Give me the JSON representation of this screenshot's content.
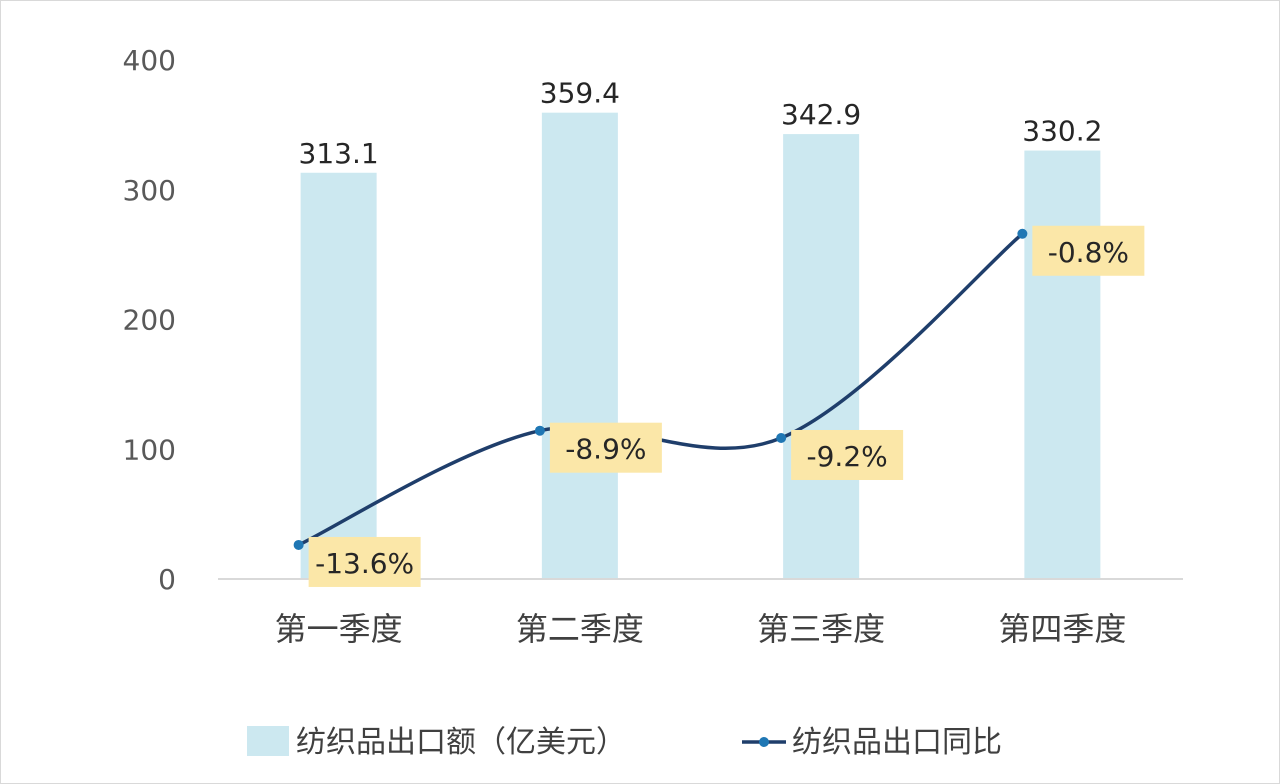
{
  "chart_data": {
    "type": "bar",
    "categories": [
      "第一季度",
      "第二季度",
      "第三季度",
      "第四季度"
    ],
    "ylim": [
      0,
      400
    ],
    "yticks": [
      0,
      100,
      200,
      300,
      400
    ],
    "series": [
      {
        "name": "纺织品出口额（亿美元）",
        "type": "bar",
        "values": [
          313.1,
          359.4,
          342.9,
          330.2
        ],
        "labels": [
          "313.1",
          "359.4",
          "342.9",
          "330.2"
        ],
        "color": "#cce8f0"
      },
      {
        "name": "纺织品出口同比",
        "type": "line",
        "values": [
          -13.6,
          -8.9,
          -9.2,
          -0.8
        ],
        "labels": [
          "-13.6%",
          "-8.9%",
          "-9.2%",
          "-0.8%"
        ],
        "color": "#1f3e6b",
        "marker_color": "#1f77b4",
        "label_bg": "#fbe7a8"
      }
    ],
    "legend_position": "bottom",
    "grid": false
  }
}
